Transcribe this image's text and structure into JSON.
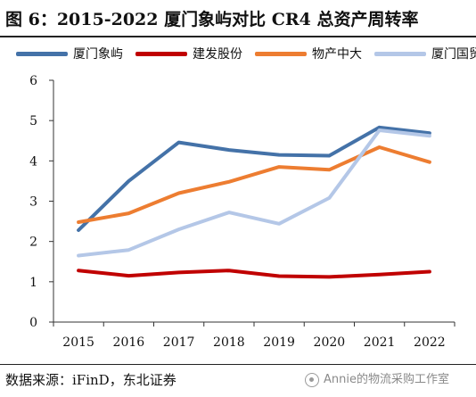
{
  "figure": {
    "title": "图 6：2015-2022 厦门象屿对比 CR4 总资产周转率",
    "source": "数据来源：iFinD，东北证券",
    "watermark": "Annie的物流采购工作室"
  },
  "chart_data": {
    "type": "line",
    "title": "图 6：2015-2022 厦门象屿对比 CR4 总资产周转率",
    "xlabel": "",
    "ylabel": "",
    "x": [
      "2015",
      "2016",
      "2017",
      "2018",
      "2019",
      "2020",
      "2021",
      "2022"
    ],
    "ylim": [
      0,
      6
    ],
    "yticks": [
      0,
      1,
      2,
      3,
      4,
      5,
      6
    ],
    "grid": false,
    "legend_position": "top",
    "series": [
      {
        "name": "厦门象屿",
        "color": "#4472a8",
        "values": [
          2.28,
          3.5,
          4.46,
          4.27,
          4.15,
          4.13,
          4.83,
          4.69
        ]
      },
      {
        "name": "建发股份",
        "color": "#c00000",
        "values": [
          1.28,
          1.15,
          1.23,
          1.28,
          1.14,
          1.12,
          1.18,
          1.25
        ]
      },
      {
        "name": "物产中大",
        "color": "#ed7d31",
        "values": [
          2.48,
          2.7,
          3.2,
          3.48,
          3.85,
          3.78,
          4.34,
          3.97
        ]
      },
      {
        "name": "厦门国贸",
        "color": "#b4c7e7",
        "values": [
          1.65,
          1.79,
          2.3,
          2.72,
          2.44,
          3.08,
          4.76,
          4.62
        ]
      }
    ]
  }
}
